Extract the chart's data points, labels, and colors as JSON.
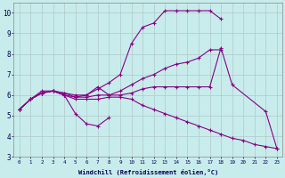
{
  "xlabel": "Windchill (Refroidissement éolien,°C)",
  "bg_color": "#c8ecec",
  "line_color": "#880088",
  "grid_color": "#b0c8c8",
  "xlim": [
    -0.5,
    23.5
  ],
  "ylim": [
    3,
    10.5
  ],
  "xticks": [
    0,
    1,
    2,
    3,
    4,
    5,
    6,
    7,
    8,
    9,
    10,
    11,
    12,
    13,
    14,
    15,
    16,
    17,
    18,
    19,
    20,
    21,
    22,
    23
  ],
  "yticks": [
    3,
    4,
    5,
    6,
    7,
    8,
    9,
    10
  ],
  "lines": [
    {
      "x": [
        0,
        1,
        2,
        3,
        4,
        5,
        6,
        7,
        8
      ],
      "y": [
        5.3,
        5.8,
        6.1,
        6.2,
        6.0,
        5.1,
        4.6,
        4.5,
        4.9
      ]
    },
    {
      "x": [
        0,
        1,
        2,
        3,
        4,
        5,
        6,
        7,
        8,
        9,
        10,
        11,
        12,
        13,
        14,
        15,
        16,
        17,
        18
      ],
      "y": [
        5.3,
        5.8,
        6.2,
        6.2,
        6.1,
        6.0,
        6.0,
        6.3,
        6.6,
        7.0,
        8.5,
        9.3,
        9.5,
        10.1,
        10.1,
        10.1,
        10.1,
        10.1,
        9.7
      ]
    },
    {
      "x": [
        0,
        1,
        2,
        3,
        4,
        5,
        6,
        7,
        8,
        9,
        10,
        11,
        12,
        13,
        14,
        15,
        16,
        17,
        18
      ],
      "y": [
        5.3,
        5.8,
        6.1,
        6.2,
        6.0,
        5.9,
        5.9,
        6.0,
        6.0,
        6.2,
        6.5,
        6.8,
        7.0,
        7.3,
        7.5,
        7.6,
        7.8,
        8.2,
        8.2
      ]
    },
    {
      "x": [
        0,
        1,
        2,
        3,
        4,
        5,
        6,
        7,
        8,
        9,
        10,
        11,
        12,
        13,
        14,
        15,
        16,
        17,
        18,
        19,
        20,
        21,
        22,
        23
      ],
      "y": [
        5.3,
        5.8,
        6.1,
        6.2,
        6.0,
        5.8,
        5.8,
        5.8,
        5.9,
        5.9,
        5.8,
        5.5,
        5.3,
        5.1,
        4.9,
        4.7,
        4.5,
        4.3,
        4.1,
        3.9,
        3.8,
        3.6,
        3.5,
        3.4
      ]
    },
    {
      "x": [
        0,
        1,
        2,
        3,
        4,
        5,
        6,
        7,
        8,
        9,
        10,
        11,
        12,
        13,
        14,
        15,
        16,
        17,
        18,
        19,
        22,
        23
      ],
      "y": [
        5.3,
        5.8,
        6.1,
        6.2,
        6.1,
        5.9,
        6.0,
        6.4,
        6.0,
        6.0,
        6.1,
        6.3,
        6.4,
        6.4,
        6.4,
        6.4,
        6.4,
        6.4,
        8.3,
        6.5,
        5.2,
        3.4
      ]
    }
  ]
}
